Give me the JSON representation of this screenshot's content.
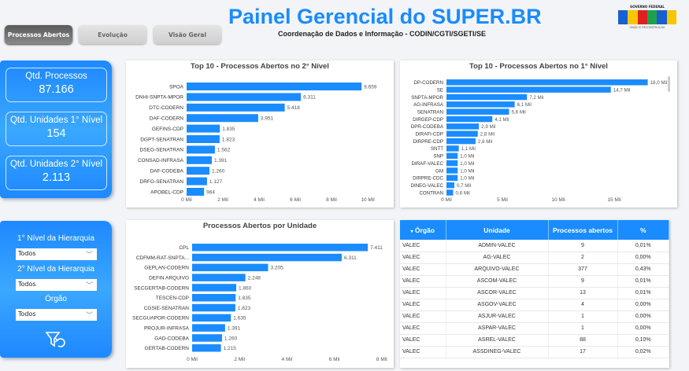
{
  "header": {
    "title": "Painel Gerencial do SUPER.BR",
    "subtitle": "Coordenação de Dados e Informação - CODIN/CGTI/SGETI/SE",
    "logo_text": "GOVERNO FEDERAL BRASIL UNIÃO E RECONSTRUÇÃO"
  },
  "nav": [
    {
      "label": "Processos Abertos",
      "active": true
    },
    {
      "label": "Evolução",
      "active": false
    },
    {
      "label": "Visão Geral",
      "active": false
    }
  ],
  "kpis": [
    {
      "label": "Qtd. Processos",
      "value": "87.166"
    },
    {
      "label": "Qtd. Unidades 1° Nível",
      "value": "154"
    },
    {
      "label": "Qtd. Unidades 2° Nível",
      "value": "2.113"
    }
  ],
  "filters": [
    {
      "label": "1° Nível da Hierarquia",
      "value": "Todos"
    },
    {
      "label": "2° Nível da Hierarquia",
      "value": "Todos"
    },
    {
      "label": "Órgão",
      "value": "Todos"
    }
  ],
  "colors": {
    "accent": "#1a8cff",
    "bar": "#1a8cff"
  },
  "chart_data": [
    {
      "type": "bar",
      "orientation": "horizontal",
      "title": "Top 10 - Processos Abertos no 2° Nível",
      "categories": [
        "SPOA",
        "DNHI-SNPTA-MPOR",
        "DTC-CODERN",
        "DAF-CODERN",
        "GEFINS-CDP",
        "DGPT-SENATRAN",
        "DSEG-SENATRAN",
        "CONSAD-INFRASA",
        "DAF-CODEBA",
        "DRFG-SENATRAN",
        "APOBEL-CDP"
      ],
      "values": [
        9659,
        6311,
        5418,
        3951,
        1835,
        1823,
        1562,
        1391,
        1260,
        1127,
        964
      ],
      "labels": [
        "9.659",
        "6.311",
        "5.418",
        "3.951",
        "1.835",
        "1.823",
        "1.562",
        "1.391",
        "1.260",
        "1.127",
        "964"
      ],
      "xlim": [
        0,
        10000
      ],
      "ticks": [
        "0 Mil",
        "2 Mil",
        "4 Mil",
        "6 Mil",
        "8 Mil",
        "10 Mil"
      ],
      "tick_values": [
        0,
        2000,
        4000,
        6000,
        8000,
        10000
      ]
    },
    {
      "type": "bar",
      "orientation": "horizontal",
      "title": "Top 10 - Processos Abertos no 1° Nível",
      "categories": [
        "DP-CODERN",
        "SE",
        "SNPTA-MPOR",
        "AG-INFRASA",
        "SENATRAN",
        "DIRGEP-CDP",
        "DPR-CODEBA",
        "DIRAFI-CDP",
        "DIRPRE-CDP",
        "SNTT",
        "SNP",
        "DIRAF-VALEC",
        "GM",
        "DIRPRE-CDC",
        "DINEG-VALEC",
        "CONTRAN"
      ],
      "values": [
        18000,
        14700,
        7200,
        6100,
        5600,
        4100,
        2900,
        2800,
        2600,
        1100,
        1000,
        1000,
        1000,
        1000,
        700,
        600
      ],
      "labels": [
        "18,0 Mil",
        "14,7 Mil",
        "7,2 Mil",
        "6,1 Mil",
        "5,6 Mil",
        "4,1 Mil",
        "2,9 Mil",
        "2,8 Mil",
        "2,6 Mil",
        "1,1 Mil",
        "1,0 Mil",
        "1,0 Mil",
        "1,0 Mil",
        "1,0 Mil",
        "0,7 Mil",
        "0,6 Mil"
      ],
      "xlim": [
        0,
        18000
      ],
      "ticks": [
        "0 Mil",
        "5 Mil",
        "10 Mil",
        "15 Mil"
      ],
      "tick_values": [
        0,
        5000,
        10000,
        15000
      ]
    },
    {
      "type": "bar",
      "orientation": "horizontal",
      "title": "Processos Abertos por Unidade",
      "categories": [
        "CPL",
        "CDFMM-RAT-SNPTA...",
        "GEPLAN-CODERN",
        "DEFIN ARQUIVO",
        "SECGERTAB-CODERN",
        "TESCEN-CDP",
        "CGSIE-SENATRAN",
        "SECGUAPOR-CODERN",
        "PROJUR-INFRASA",
        "GAD-CODEBA",
        "GERTAB-CODERN"
      ],
      "values": [
        7411,
        6311,
        3205,
        2248,
        1860,
        1835,
        1823,
        1635,
        1391,
        1260,
        1215
      ],
      "labels": [
        "7.411",
        "6.311",
        "3.205",
        "2.248",
        "1.860",
        "1.835",
        "1.823",
        "1.635",
        "1.391",
        "1.260",
        "1.215"
      ],
      "xlim": [
        0,
        8000
      ],
      "ticks": [
        "0 Mil",
        "2 Mil",
        "4 Mil",
        "6 Mil",
        "8 Mil"
      ],
      "tick_values": [
        0,
        2000,
        4000,
        6000,
        8000
      ]
    }
  ],
  "table": {
    "columns": [
      "Órgão",
      "Unidade",
      "Processos abertos",
      "%"
    ],
    "rows": [
      [
        "VALEC",
        "ADMIN-VALEC",
        "9",
        "0,01%"
      ],
      [
        "VALEC",
        "AG-VALEC",
        "2",
        "0,00%"
      ],
      [
        "VALEC",
        "ARQUIVO-VALEC",
        "377",
        "0,43%"
      ],
      [
        "VALEC",
        "ASCOM-VALEC",
        "9",
        "0,01%"
      ],
      [
        "VALEC",
        "ASCOR-VALEC",
        "13",
        "0,01%"
      ],
      [
        "VALEC",
        "ASGOV-VALEC",
        "4",
        "0,00%"
      ],
      [
        "VALEC",
        "ASJUR-VALEC",
        "1",
        "0,00%"
      ],
      [
        "VALEC",
        "ASPAR-VALEC",
        "1",
        "0,00%"
      ],
      [
        "VALEC",
        "ASREL-VALEC",
        "88",
        "0,10%"
      ],
      [
        "VALEC",
        "ASSDINEG-VALEC",
        "17",
        "0,02%"
      ]
    ]
  }
}
